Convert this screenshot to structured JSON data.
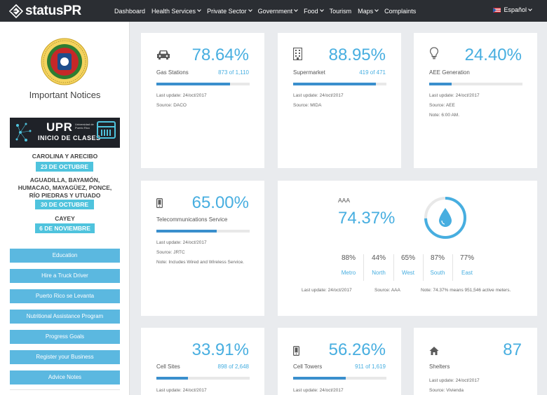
{
  "brand": {
    "name_bold": "status",
    "name_rest": "PR"
  },
  "nav": {
    "items": [
      {
        "label": "Dashboard",
        "caret": false
      },
      {
        "label": "Health Services",
        "caret": true
      },
      {
        "label": "Private Sector",
        "caret": true
      },
      {
        "label": "Government",
        "caret": true
      },
      {
        "label": "Food",
        "caret": true
      },
      {
        "label": "Tourism",
        "caret": false
      },
      {
        "label": "Maps",
        "caret": true
      },
      {
        "label": "Complaints",
        "caret": false
      }
    ],
    "language": "Español"
  },
  "sidebar": {
    "title": "Important Notices",
    "banner": {
      "upr": "UPR",
      "subtitle": "INICIO DE CLASES",
      "university": "Universidad de Puerto Rico"
    },
    "announcements": [
      {
        "places": "CAROLINA Y ARECIBO",
        "date": "23 DE OCTUBRE"
      },
      {
        "places_lines": [
          "AGUADILLA, BAYAMÓN,",
          "HUMACAO, MAYAGÜEZ, PONCE,",
          "RÍO PIEDRAS Y UTUADO"
        ],
        "date": "30 DE OCTUBRE"
      },
      {
        "places": "CAYEY",
        "date": "6 DE NOVIEMBRE"
      }
    ],
    "buttons": [
      "Education",
      "Hire a Truck Driver",
      "Puerto Rico se Levanta",
      "Nutritional Assistance Program",
      "Progress Goals",
      "Register your Business",
      "Advice Notes"
    ]
  },
  "cards": {
    "gas": {
      "icon": "car-icon",
      "percent": "78.64%",
      "label": "Gas Stations",
      "count": "873 of 1,110",
      "progress": 0.7864,
      "updated": "Last update: 24/oct/2017",
      "source": "Source: DACO"
    },
    "supermarket": {
      "icon": "building-icon",
      "percent": "88.95%",
      "label": "Supermarket",
      "count": "419 of 471",
      "progress": 0.8895,
      "updated": "Last update: 24/oct/2017",
      "source": "Source: MIDA"
    },
    "aee": {
      "icon": "lightbulb-icon",
      "percent": "24.40%",
      "label": "AEE Generation",
      "count": "",
      "progress": 0.244,
      "updated": "Last update: 24/oct/2017",
      "source": "Source: AEE",
      "note": "Note: 6:00 AM."
    },
    "telecom": {
      "icon": "mobile-icon",
      "percent": "65.00%",
      "label": "Telecommunications Service",
      "count": "",
      "progress": 0.65,
      "updated": "Last update: 24/oct/2017",
      "source": "Source: JRTC",
      "note": "Note: Includes Wired and Wireless Service."
    },
    "aaa": {
      "title": "AAA",
      "percent": "74.37%",
      "progress": 0.7437,
      "icon": "water-drop-icon",
      "regions": [
        {
          "value": "88%",
          "name": "Metro"
        },
        {
          "value": "44%",
          "name": "North"
        },
        {
          "value": "65%",
          "name": "West"
        },
        {
          "value": "87%",
          "name": "South"
        },
        {
          "value": "77%",
          "name": "East"
        }
      ],
      "updated": "Last update: 24/oct/2017",
      "source": "Source: AAA",
      "note": "Note: 74.37% means 951,546 active meters."
    },
    "cell_sites": {
      "icon": "",
      "percent": "33.91%",
      "label": "Cell Sites",
      "count": "898 of 2,648",
      "progress": 0.3391,
      "updated": "Last update: 24/oct/2017"
    },
    "cell_towers": {
      "icon": "mobile-icon",
      "percent": "56.26%",
      "label": "Cell Towers",
      "count": "911 of 1,619",
      "progress": 0.5626,
      "updated": "Last update: 24/oct/2017"
    },
    "shelters": {
      "icon": "home-icon",
      "value": "87",
      "label": "Shelters",
      "updated": "Last update: 24/oct/2017",
      "source": "Source: Vivienda"
    }
  },
  "colors": {
    "accent": "#47aee0",
    "bar": "#3a8fcd",
    "navbar": "#2b2e33",
    "button": "#5bb8e0",
    "pill": "#4fc3dd"
  }
}
